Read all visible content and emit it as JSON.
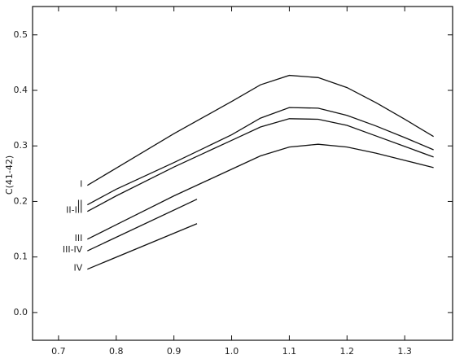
{
  "chart_data": {
    "type": "line",
    "y_label": "C(41-42)",
    "xlim": [
      0.655,
      1.383
    ],
    "ylim": [
      -0.05,
      0.551
    ],
    "xticks": [
      0.7,
      0.8,
      0.9,
      {
        "value": 1.0,
        "label": "1.0"
      },
      1.1,
      1.2,
      1.3
    ],
    "yticks": [
      {
        "value": 0,
        "label": "0.0"
      },
      0.1,
      0.2,
      0.3,
      0.4,
      0.5
    ],
    "grid": false,
    "series": [
      {
        "name": "I",
        "color": "#111111",
        "x": [
          0.75,
          0.8,
          0.9,
          1.0,
          1.05,
          1.1,
          1.15,
          1.2,
          1.25,
          1.3,
          1.35
        ],
        "values": [
          0.229,
          0.26,
          0.322,
          0.38,
          0.41,
          0.427,
          0.423,
          0.405,
          0.378,
          0.348,
          0.317
        ]
      },
      {
        "name": "II",
        "color": "#111111",
        "x": [
          0.75,
          0.8,
          0.9,
          1.0,
          1.05,
          1.1,
          1.15,
          1.2,
          1.25,
          1.3,
          1.35
        ],
        "values": [
          0.194,
          0.222,
          0.27,
          0.32,
          0.35,
          0.369,
          0.368,
          0.355,
          0.336,
          0.315,
          0.293
        ]
      },
      {
        "name": "II-III",
        "color": "#111111",
        "x": [
          0.75,
          0.8,
          0.9,
          1.0,
          1.05,
          1.1,
          1.15,
          1.2,
          1.25,
          1.3,
          1.35
        ],
        "values": [
          0.182,
          0.21,
          0.262,
          0.31,
          0.334,
          0.349,
          0.348,
          0.337,
          0.318,
          0.299,
          0.28
        ]
      },
      {
        "name": "III",
        "color": "#111111",
        "x": [
          0.75,
          0.8,
          0.9,
          1.0,
          1.05,
          1.1,
          1.15,
          1.2,
          1.25,
          1.3,
          1.35
        ],
        "values": [
          0.132,
          0.158,
          0.21,
          0.258,
          0.282,
          0.298,
          0.303,
          0.298,
          0.287,
          0.274,
          0.261
        ]
      },
      {
        "name": "III-IV",
        "color": "#111111",
        "x": [
          0.75,
          0.94
        ],
        "values": [
          0.111,
          0.204
        ]
      },
      {
        "name": "IV",
        "color": "#111111",
        "x": [
          0.75,
          0.94
        ],
        "values": [
          0.078,
          0.16
        ]
      }
    ]
  }
}
